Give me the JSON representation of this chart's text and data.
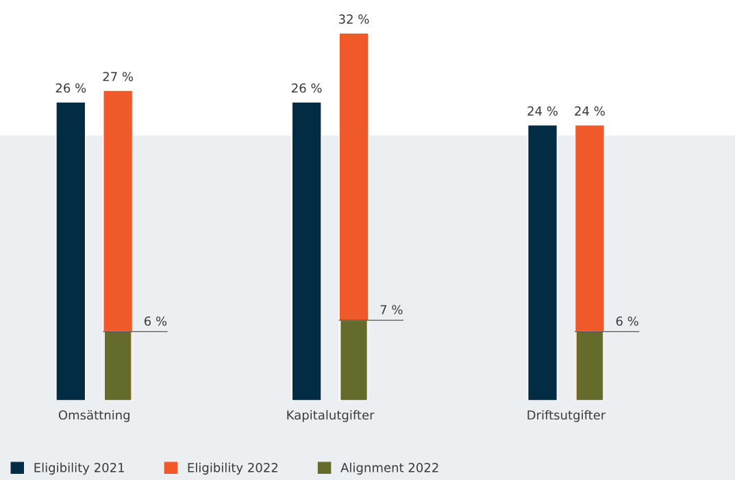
{
  "chart_data": {
    "type": "bar",
    "categories": [
      "Omsättning",
      "Kapitalutgifter",
      "Driftsutgifter"
    ],
    "series": [
      {
        "name": "Eligibility 2021",
        "color": "#022c43",
        "values": [
          26,
          26,
          24
        ],
        "value_labels": [
          "26 %",
          "26 %",
          "24 %"
        ]
      },
      {
        "name": "Eligibility 2022",
        "color": "#f0592a",
        "values": [
          27,
          32,
          24
        ],
        "value_labels": [
          "27 %",
          "32 %",
          "24 %"
        ]
      },
      {
        "name": "Alignment 2022",
        "color": "#656b2a",
        "values": [
          6,
          7,
          6
        ],
        "value_labels": [
          "6 %",
          "7 %",
          "6 %"
        ]
      }
    ],
    "legend": "bottom left",
    "grid": false
  }
}
